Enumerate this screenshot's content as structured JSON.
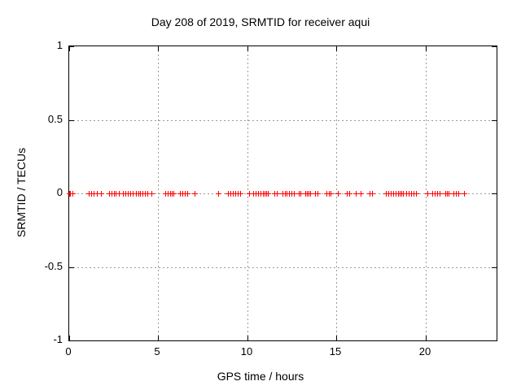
{
  "chart_data": {
    "type": "scatter",
    "title": "Day 208 of 2019, SRMTID for receiver aqui",
    "xlabel": "GPS time / hours",
    "ylabel": "SRMTID / TECUs",
    "xlim": [
      0,
      24
    ],
    "ylim": [
      -1,
      1
    ],
    "xticks": [
      0,
      5,
      10,
      15,
      20
    ],
    "xtick_labels": [
      "0",
      "5",
      "10",
      "15",
      "20"
    ],
    "yticks": [
      1,
      0.5,
      0,
      -0.5,
      -1
    ],
    "ytick_labels": [
      "1",
      "0.5",
      "0",
      "-0.5",
      "-1"
    ],
    "grid": true,
    "grid_style": "dotted",
    "grid_color": "#9a9a9a",
    "frame_color": "#000000",
    "marker": "plus",
    "marker_color": "#ff0000",
    "legend": "none",
    "series": [
      {
        "name": "SRMTID",
        "y_constant": 0,
        "x": [
          0.0,
          0.05,
          0.18,
          1.1,
          1.23,
          1.37,
          1.55,
          1.78,
          2.24,
          2.38,
          2.51,
          2.6,
          2.79,
          3.02,
          3.15,
          3.29,
          3.43,
          3.57,
          3.75,
          3.89,
          3.98,
          4.11,
          4.25,
          4.39,
          4.62,
          5.39,
          5.53,
          5.67,
          5.76,
          5.85,
          6.22,
          6.35,
          6.49,
          6.63,
          7.04,
          8.37,
          8.91,
          9.05,
          9.19,
          9.33,
          9.46,
          9.6,
          10.1,
          10.33,
          10.47,
          10.61,
          10.74,
          10.88,
          10.97,
          11.06,
          11.15,
          11.52,
          11.66,
          11.98,
          12.11,
          12.21,
          12.34,
          12.48,
          12.62,
          12.89,
          12.98,
          13.26,
          13.35,
          13.44,
          13.53,
          13.81,
          13.94,
          14.45,
          14.58,
          14.67,
          15.09,
          15.59,
          15.73,
          16.09,
          16.37,
          16.87,
          17.01,
          17.78,
          17.92,
          18.06,
          18.19,
          18.33,
          18.47,
          18.56,
          18.65,
          18.74,
          18.93,
          19.06,
          19.2,
          19.34,
          19.47,
          20.11,
          20.39,
          20.53,
          20.66,
          20.8,
          21.12,
          21.21,
          21.3,
          21.58,
          21.71,
          21.85,
          22.17
        ]
      }
    ]
  }
}
